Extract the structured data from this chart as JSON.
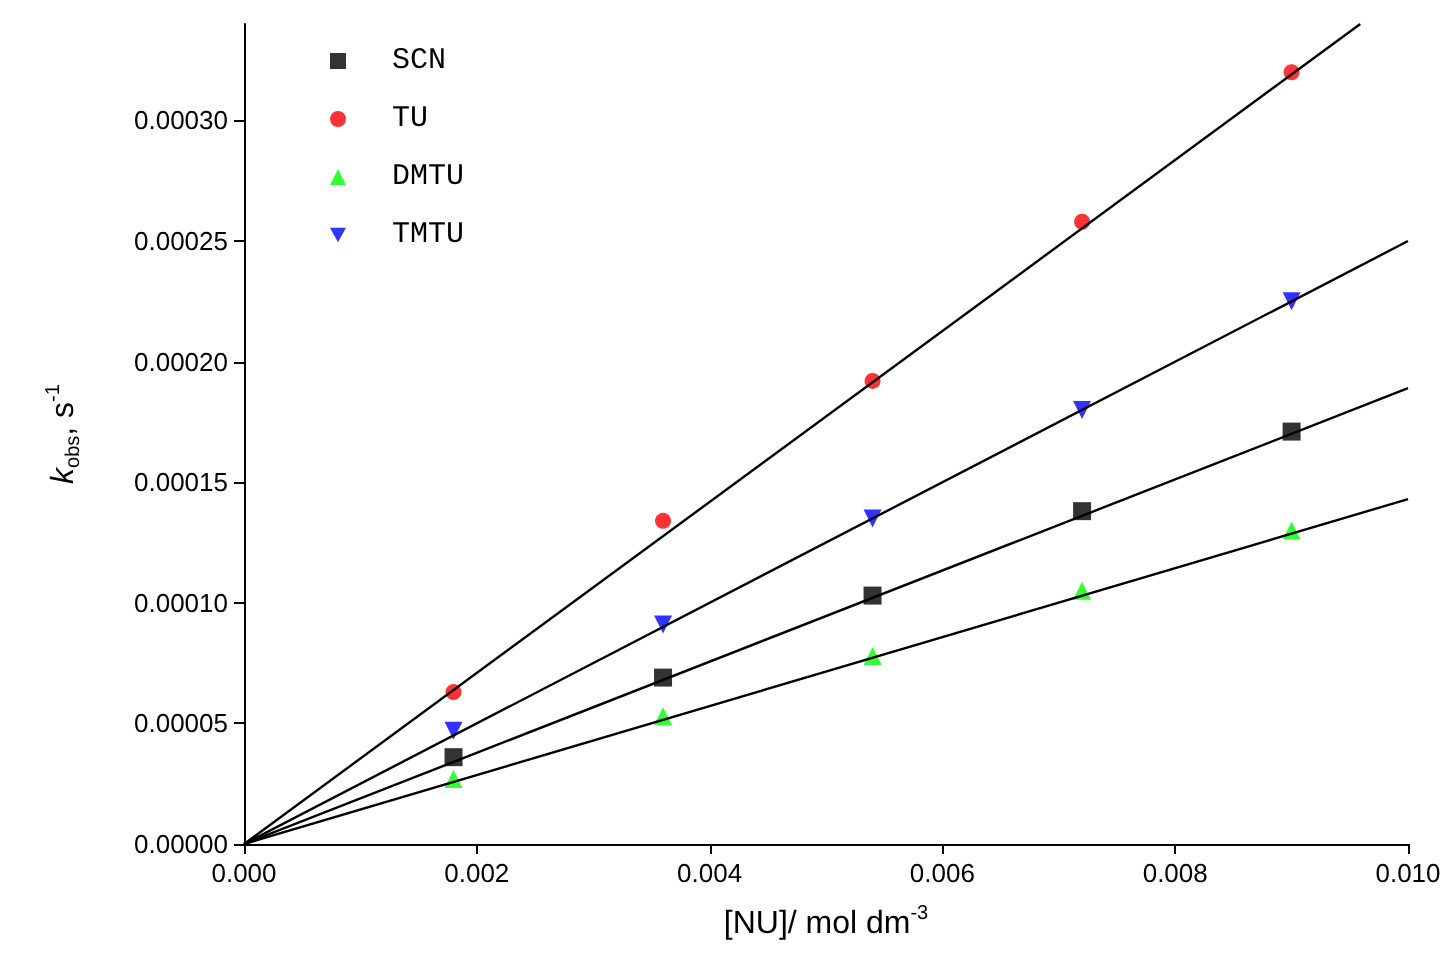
{
  "chart_data": {
    "type": "scatter",
    "xlabel": "[NU]/ mol dm$^{-3}$",
    "ylabel": "k$_{obs}$, s$^{-1}$",
    "xlim": [
      0,
      0.01
    ],
    "ylim": [
      0,
      0.00034
    ],
    "xticks": [
      {
        "value": 0,
        "label": "0.000"
      },
      {
        "value": 0.002,
        "label": "0.002"
      },
      {
        "value": 0.004,
        "label": "0.004"
      },
      {
        "value": 0.006,
        "label": "0.006"
      },
      {
        "value": 0.008,
        "label": "0.008"
      },
      {
        "value": 0.01,
        "label": "0.010"
      }
    ],
    "yticks": [
      {
        "value": 0,
        "label": "0.00000"
      },
      {
        "value": 5e-05,
        "label": "0.00005"
      },
      {
        "value": 0.0001,
        "label": "0.00010"
      },
      {
        "value": 0.00015,
        "label": "0.00015"
      },
      {
        "value": 0.0002,
        "label": "0.00020"
      },
      {
        "value": 0.00025,
        "label": "0.00025"
      },
      {
        "value": 0.0003,
        "label": "0.00030"
      }
    ],
    "grid": false,
    "legend": "top left",
    "series": [
      {
        "name": "SCN",
        "marker": "square",
        "color": "#000000",
        "x": [
          0.0018,
          0.0036,
          0.0054,
          0.0072,
          0.009
        ],
        "values": [
          3.6e-05,
          6.9e-05,
          0.000103,
          0.000138,
          0.000171
        ]
      },
      {
        "name": "TU",
        "marker": "circle",
        "color": "#ff0000",
        "x": [
          0.0018,
          0.0036,
          0.0054,
          0.0072,
          0.009
        ],
        "values": [
          6.3e-05,
          0.000134,
          0.000192,
          0.000258,
          0.00032
        ]
      },
      {
        "name": "DMTU",
        "marker": "triangle",
        "color": "#00ff00",
        "x": [
          0.0018,
          0.0036,
          0.0054,
          0.0072,
          0.009
        ],
        "values": [
          2.7e-05,
          5.3e-05,
          7.8e-05,
          0.000105,
          0.00013
        ]
      },
      {
        "name": "TMTU",
        "marker": "triangle-down",
        "color": "#0000ff",
        "x": [
          0.0018,
          0.0036,
          0.0054,
          0.0072,
          0.009
        ],
        "values": [
          4.7e-05,
          9.1e-05,
          0.000135,
          0.00018,
          0.000225
        ]
      },
      {
        "type": "line",
        "marker": "none",
        "color": "#000000",
        "x": [
          0,
          0.01
        ],
        "values": [
          0,
          0.000189
        ]
      },
      {
        "type": "line",
        "marker": "none",
        "color": "#000000",
        "x": [
          0,
          0.00959
        ],
        "values": [
          0,
          0.00034
        ]
      },
      {
        "type": "line",
        "marker": "none",
        "color": "#000000",
        "x": [
          0,
          0.01
        ],
        "values": [
          0,
          0.000143
        ]
      },
      {
        "type": "line",
        "marker": "none",
        "color": "#000000",
        "x": [
          0,
          0.01
        ],
        "values": [
          0,
          0.00025
        ]
      }
    ]
  }
}
